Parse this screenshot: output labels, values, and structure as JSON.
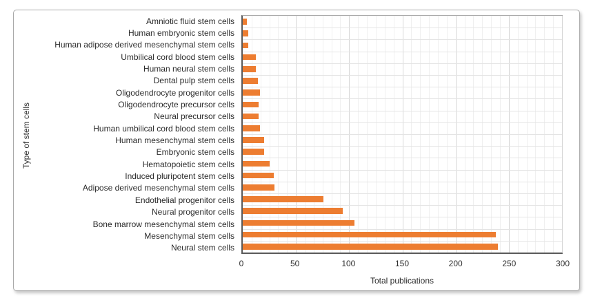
{
  "figure": {
    "kind": "statistical chart figure",
    "background": "#ffffff"
  },
  "colors": {
    "bar": "#ED7D31",
    "card_border": "#a9a9a9",
    "axis_line": "#595959"
  },
  "chart_data": {
    "type": "bar",
    "orientation": "horizontal",
    "title": "",
    "xlabel": "Total publications",
    "ylabel": "Type of stem cells",
    "xlim": [
      0,
      300
    ],
    "x_ticks": [
      0,
      50,
      100,
      150,
      200,
      250,
      300
    ],
    "x_minor_divisions_per_major": 6,
    "grid": "vertical major+minor gridlines, light horizontal row gridlines",
    "legend": "none",
    "bar_color": "#ED7D31",
    "categories": [
      "Amniotic fluid stem cells",
      "Human embryonic stem cells",
      "Human adipose derived mesenchymal stem cells",
      "Umbilical cord blood stem cells",
      "Human neural stem cells",
      "Dental pulp stem cells",
      "Oligodendrocyte progenitor cells",
      "Oligodendrocyte precursor cells",
      "Neural precursor cells",
      "Human umbilical cord blood stem cells",
      "Human mesenchymal stem cells",
      "Embryonic stem cells",
      "Hematopoietic stem cells",
      "Induced pluripotent stem cells",
      "Adipose derived mesenchymal stem cells",
      "Endothelial progenitor cells",
      "Neural progenitor cells",
      "Bone marrow mesenchymal stem cells",
      "Mesenchymal stem cells",
      "Neural stem cells"
    ],
    "values": [
      4,
      5,
      5,
      12,
      12,
      14,
      16,
      15,
      15,
      16,
      20,
      20,
      25,
      29,
      30,
      76,
      94,
      105,
      238,
      240
    ]
  }
}
